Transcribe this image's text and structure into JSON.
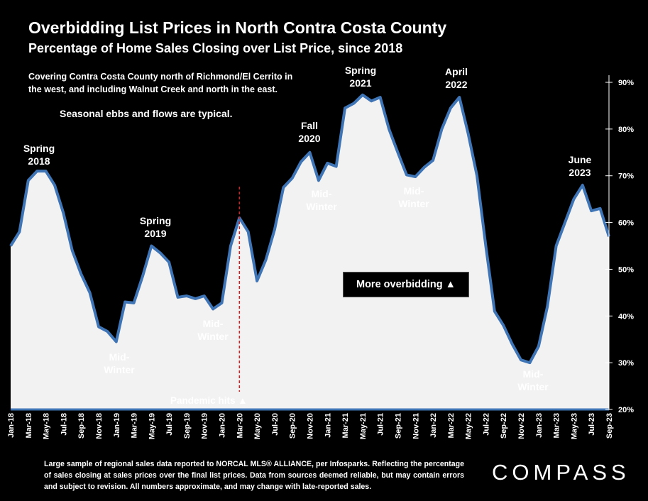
{
  "title": "Overbidding List Prices in North Contra Costa County",
  "subtitle": "Percentage of Home Sales Closing over List Price, since 2018",
  "note": "Covering Contra Costa County north of Richmond/El Cerrito in the west, and including Walnut Creek and north in the east.",
  "note2": "Seasonal ebbs and flows are typical.",
  "callout": "More overbidding ▲",
  "pandemic_label": "Pandemic hits ▲",
  "footer": "Large sample of regional sales data reported to NORCAL MLS® ALLIANCE, per Infosparks. Reflecting the percentage of sales closing at sales prices over the final list prices. Data from sources deemed reliable, but may contain errors and subject to revision. All numbers approximate, and may change with late-reported sales.",
  "logo": "COMPASS",
  "colors": {
    "line": "#3f74b5",
    "fill": "#f2f2f2",
    "background": "#000000",
    "pandemic_line": "#c0282c"
  },
  "chart_data": {
    "type": "area",
    "x": [
      "Jan-18",
      "Feb-18",
      "Mar-18",
      "Apr-18",
      "May-18",
      "Jun-18",
      "Jul-18",
      "Aug-18",
      "Sep-18",
      "Oct-18",
      "Nov-18",
      "Dec-18",
      "Jan-19",
      "Feb-19",
      "Mar-19",
      "Apr-19",
      "May-19",
      "Jun-19",
      "Jul-19",
      "Aug-19",
      "Sep-19",
      "Oct-19",
      "Nov-19",
      "Dec-19",
      "Jan-20",
      "Feb-20",
      "Mar-20",
      "Apr-20",
      "May-20",
      "Jun-20",
      "Jul-20",
      "Aug-20",
      "Sep-20",
      "Oct-20",
      "Nov-20",
      "Dec-20",
      "Jan-21",
      "Feb-21",
      "Mar-21",
      "Apr-21",
      "May-21",
      "Jun-21",
      "Jul-21",
      "Aug-21",
      "Sep-21",
      "Oct-21",
      "Nov-21",
      "Dec-21",
      "Jan-22",
      "Feb-22",
      "Mar-22",
      "Apr-22",
      "May-22",
      "Jun-22",
      "Jul-22",
      "Aug-22",
      "Sep-22",
      "Oct-22",
      "Nov-22",
      "Dec-22",
      "Jan-23",
      "Feb-23",
      "Mar-23",
      "Apr-23",
      "May-23",
      "Jun-23",
      "Jul-23",
      "Aug-23",
      "Sep-23"
    ],
    "x_tick_labels": [
      "Jan-18",
      "Mar-18",
      "May-18",
      "Jul-18",
      "Sep-18",
      "Nov-18",
      "Jan-19",
      "Mar-19",
      "May-19",
      "Jul-19",
      "Sep-19",
      "Nov-19",
      "Jan-20",
      "Mar-20",
      "May-20",
      "Jul-20",
      "Sep-20",
      "Nov-20",
      "Jan-21",
      "Mar-21",
      "May-21",
      "Jul-21",
      "Sep-21",
      "Nov-21",
      "Jan-22",
      "Mar-22",
      "May-22",
      "Jul-22",
      "Sep-22",
      "Nov-22",
      "Jan-23",
      "Mar-23",
      "May-23",
      "Jul-23",
      "Sep-23"
    ],
    "series": [
      {
        "values": [
          55,
          58,
          69,
          71,
          71,
          68,
          62,
          54,
          49,
          45,
          37.7,
          36.7,
          34.5,
          43,
          42.8,
          48.5,
          55,
          53.5,
          51.5,
          44,
          44.3,
          43.7,
          44.3,
          41.5,
          42.8,
          55,
          61,
          58,
          47.5,
          52,
          58.5,
          67.5,
          69.5,
          73,
          75,
          69,
          72.7,
          72,
          84.5,
          85.5,
          87.3,
          86,
          86.8,
          80,
          75,
          70.2,
          69.8,
          71.8,
          73.3,
          80,
          84.5,
          86.8,
          79,
          70,
          55,
          41,
          38,
          34,
          30.6,
          30,
          33.5,
          42,
          55,
          60,
          65,
          68,
          62.5,
          63,
          57
        ]
      }
    ],
    "ylim": [
      20,
      90
    ],
    "y_ticks": [
      "20%",
      "30%",
      "40%",
      "50%",
      "60%",
      "70%",
      "80%",
      "90%"
    ],
    "grid": false,
    "annotations": [
      {
        "x": "Apr-18",
        "lines": [
          "Spring",
          "2018"
        ]
      },
      {
        "x": "Jan-19",
        "lines": [
          "Mid-",
          "Winter"
        ]
      },
      {
        "x": "May-19",
        "lines": [
          "Spring",
          "2019"
        ]
      },
      {
        "x": "Dec-19",
        "lines": [
          "Mid-",
          "Winter"
        ]
      },
      {
        "x": "Nov-20",
        "lines": [
          "Fall",
          "2020"
        ]
      },
      {
        "x": "Dec-20",
        "lines": [
          "Mid-",
          "Winter"
        ]
      },
      {
        "x": "May-21",
        "lines": [
          "Spring",
          "2021"
        ]
      },
      {
        "x": "Nov-21",
        "lines": [
          "Mid-",
          "Winter"
        ]
      },
      {
        "x": "Apr-22",
        "lines": [
          "April",
          "2022"
        ]
      },
      {
        "x": "Dec-22",
        "lines": [
          "Mid-",
          "Winter"
        ]
      },
      {
        "x": "Jun-23",
        "lines": [
          "June",
          "2023"
        ]
      }
    ],
    "pandemic_marker_x": "Mar-20"
  }
}
